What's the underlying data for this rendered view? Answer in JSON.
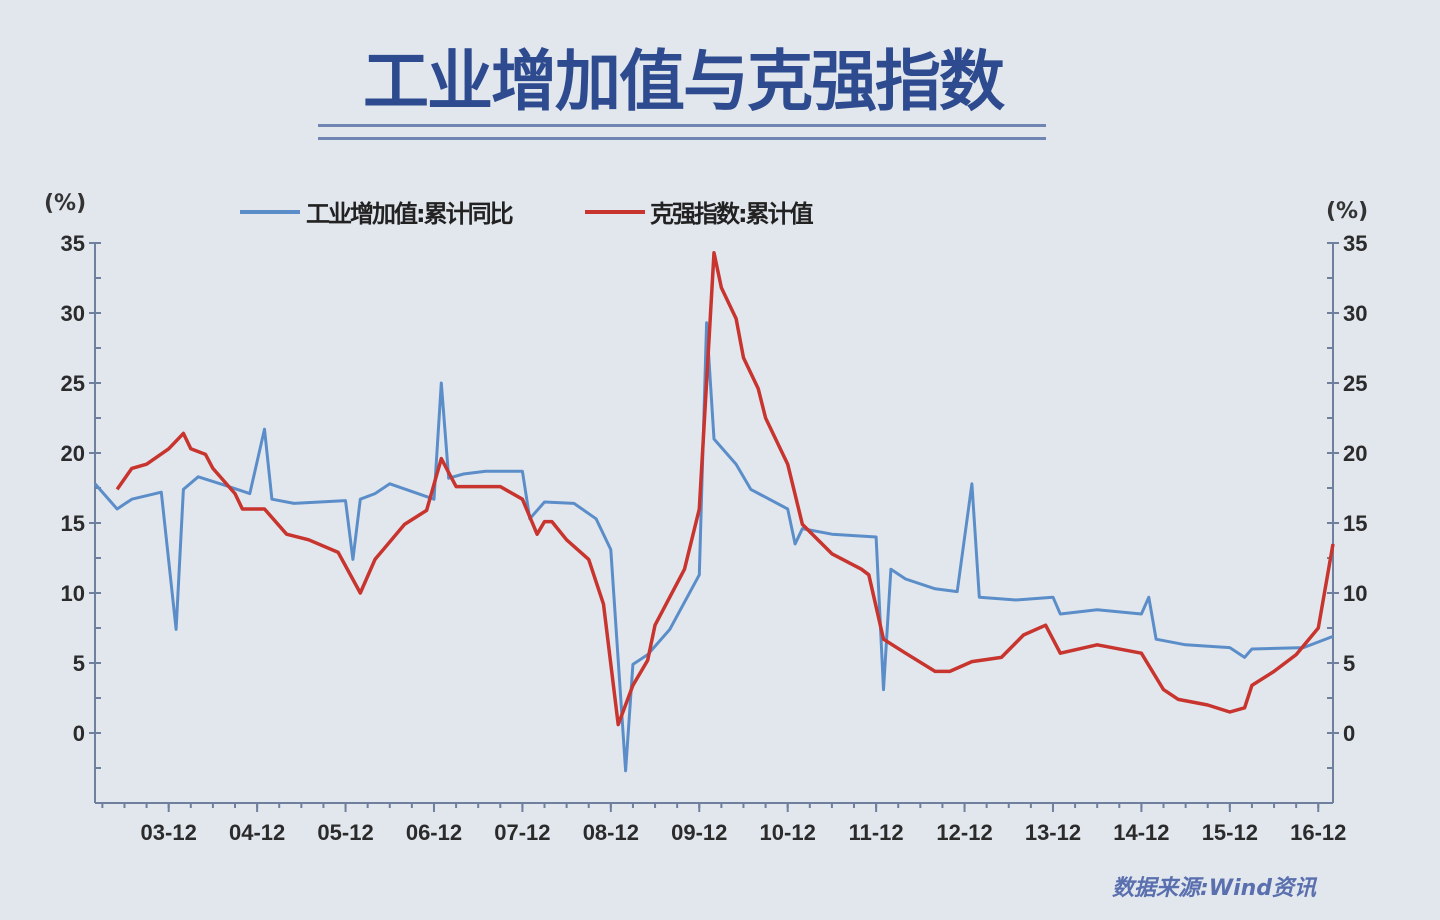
{
  "title": "工业增加值与克强指数",
  "source": "数据来源:Wind资讯",
  "colors": {
    "title": "#2d4b8e",
    "industrial": "#5b8ec9",
    "keqiang": "#c8342e",
    "axis": "#6f7f9e",
    "background": "#e2e7ee"
  },
  "chart_data": {
    "type": "line",
    "title": "工业增加值与克强指数",
    "left_unit": "(%)",
    "right_unit": "(%)",
    "ylim": [
      -5,
      35
    ],
    "yticks": [
      0,
      5,
      10,
      15,
      20,
      25,
      30,
      35
    ],
    "ytick_labels": [
      "0",
      "5",
      "10",
      "15",
      "20",
      "25",
      "30",
      "35"
    ],
    "xlim": [
      "2003-02",
      "2017-02"
    ],
    "xticks": [
      "2003-12",
      "2004-12",
      "2005-12",
      "2006-12",
      "2007-12",
      "2008-12",
      "2009-12",
      "2010-12",
      "2011-12",
      "2012-12",
      "2013-12",
      "2014-12",
      "2015-12",
      "2016-12"
    ],
    "xtick_labels": [
      "03-12",
      "04-12",
      "05-12",
      "06-12",
      "07-12",
      "08-12",
      "09-12",
      "10-12",
      "11-12",
      "12-12",
      "13-12",
      "14-12",
      "15-12",
      "16-12"
    ],
    "grid": false,
    "legend_position": "top",
    "series": [
      {
        "name": "工业增加值:累计同比",
        "color": "#5b8ec9",
        "points": [
          [
            "2003-02",
            17.8
          ],
          [
            "2003-05",
            16.0
          ],
          [
            "2003-07",
            16.7
          ],
          [
            "2003-11",
            17.2
          ],
          [
            "2004-01",
            7.4
          ],
          [
            "2004-02",
            17.4
          ],
          [
            "2004-04",
            18.3
          ],
          [
            "2004-07",
            17.8
          ],
          [
            "2004-11",
            17.1
          ],
          [
            "2005-01",
            21.7
          ],
          [
            "2005-02",
            16.7
          ],
          [
            "2005-05",
            16.4
          ],
          [
            "2005-12",
            16.6
          ],
          [
            "2006-01",
            12.4
          ],
          [
            "2006-02",
            16.7
          ],
          [
            "2006-04",
            17.1
          ],
          [
            "2006-06",
            17.8
          ],
          [
            "2006-12",
            16.7
          ],
          [
            "2007-01",
            25.0
          ],
          [
            "2007-02",
            18.2
          ],
          [
            "2007-04",
            18.5
          ],
          [
            "2007-07",
            18.7
          ],
          [
            "2007-12",
            18.7
          ],
          [
            "2008-01",
            15.3
          ],
          [
            "2008-03",
            16.5
          ],
          [
            "2008-07",
            16.4
          ],
          [
            "2008-10",
            15.3
          ],
          [
            "2008-12",
            13.1
          ],
          [
            "2009-02",
            -2.7
          ],
          [
            "2009-03",
            4.9
          ],
          [
            "2009-05",
            5.6
          ],
          [
            "2009-08",
            7.4
          ],
          [
            "2009-12",
            11.3
          ],
          [
            "2010-01",
            29.3
          ],
          [
            "2010-02",
            21.0
          ],
          [
            "2010-05",
            19.2
          ],
          [
            "2010-07",
            17.4
          ],
          [
            "2010-12",
            16.0
          ],
          [
            "2011-01",
            13.5
          ],
          [
            "2011-02",
            14.6
          ],
          [
            "2011-06",
            14.2
          ],
          [
            "2011-12",
            14.0
          ],
          [
            "2012-01",
            3.1
          ],
          [
            "2012-02",
            11.7
          ],
          [
            "2012-04",
            11.0
          ],
          [
            "2012-08",
            10.3
          ],
          [
            "2012-11",
            10.1
          ],
          [
            "2013-01",
            17.8
          ],
          [
            "2013-02",
            9.7
          ],
          [
            "2013-07",
            9.5
          ],
          [
            "2013-12",
            9.7
          ],
          [
            "2014-01",
            8.5
          ],
          [
            "2014-06",
            8.8
          ],
          [
            "2014-12",
            8.5
          ],
          [
            "2015-01",
            9.7
          ],
          [
            "2015-02",
            6.7
          ],
          [
            "2015-06",
            6.3
          ],
          [
            "2015-12",
            6.1
          ],
          [
            "2016-02",
            5.4
          ],
          [
            "2016-03",
            6.0
          ],
          [
            "2016-10",
            6.1
          ],
          [
            "2017-02",
            6.9
          ]
        ]
      },
      {
        "name": "克强指数:累计值",
        "color": "#c8342e",
        "points": [
          [
            "2003-05",
            17.4
          ],
          [
            "2003-07",
            18.9
          ],
          [
            "2003-09",
            19.2
          ],
          [
            "2003-12",
            20.3
          ],
          [
            "2004-02",
            21.4
          ],
          [
            "2004-03",
            20.3
          ],
          [
            "2004-05",
            19.9
          ],
          [
            "2004-06",
            18.9
          ],
          [
            "2004-09",
            17.1
          ],
          [
            "2004-10",
            16.0
          ],
          [
            "2005-01",
            16.0
          ],
          [
            "2005-04",
            14.2
          ],
          [
            "2005-07",
            13.8
          ],
          [
            "2005-11",
            12.9
          ],
          [
            "2006-02",
            10.0
          ],
          [
            "2006-04",
            12.4
          ],
          [
            "2006-08",
            14.9
          ],
          [
            "2006-11",
            15.9
          ],
          [
            "2007-01",
            19.6
          ],
          [
            "2007-03",
            17.6
          ],
          [
            "2007-09",
            17.6
          ],
          [
            "2007-12",
            16.7
          ],
          [
            "2008-02",
            14.2
          ],
          [
            "2008-03",
            15.1
          ],
          [
            "2008-04",
            15.1
          ],
          [
            "2008-06",
            13.8
          ],
          [
            "2008-09",
            12.4
          ],
          [
            "2008-11",
            9.2
          ],
          [
            "2009-01",
            0.6
          ],
          [
            "2009-03",
            3.4
          ],
          [
            "2009-05",
            5.2
          ],
          [
            "2009-06",
            7.7
          ],
          [
            "2009-10",
            11.7
          ],
          [
            "2009-12",
            16.0
          ],
          [
            "2010-02",
            34.3
          ],
          [
            "2010-03",
            31.8
          ],
          [
            "2010-05",
            29.6
          ],
          [
            "2010-06",
            26.8
          ],
          [
            "2010-08",
            24.6
          ],
          [
            "2010-09",
            22.5
          ],
          [
            "2010-12",
            19.2
          ],
          [
            "2011-02",
            14.9
          ],
          [
            "2011-06",
            12.8
          ],
          [
            "2011-10",
            11.7
          ],
          [
            "2011-11",
            11.3
          ],
          [
            "2012-01",
            6.7
          ],
          [
            "2012-04",
            5.7
          ],
          [
            "2012-08",
            4.4
          ],
          [
            "2012-10",
            4.4
          ],
          [
            "2013-01",
            5.1
          ],
          [
            "2013-05",
            5.4
          ],
          [
            "2013-08",
            7.0
          ],
          [
            "2013-11",
            7.7
          ],
          [
            "2014-01",
            5.7
          ],
          [
            "2014-06",
            6.3
          ],
          [
            "2014-12",
            5.7
          ],
          [
            "2015-03",
            3.1
          ],
          [
            "2015-05",
            2.4
          ],
          [
            "2015-09",
            2.0
          ],
          [
            "2015-12",
            1.5
          ],
          [
            "2016-02",
            1.8
          ],
          [
            "2016-03",
            3.4
          ],
          [
            "2016-06",
            4.4
          ],
          [
            "2016-09",
            5.6
          ],
          [
            "2016-12",
            7.5
          ],
          [
            "2017-02",
            13.5
          ]
        ]
      }
    ]
  }
}
